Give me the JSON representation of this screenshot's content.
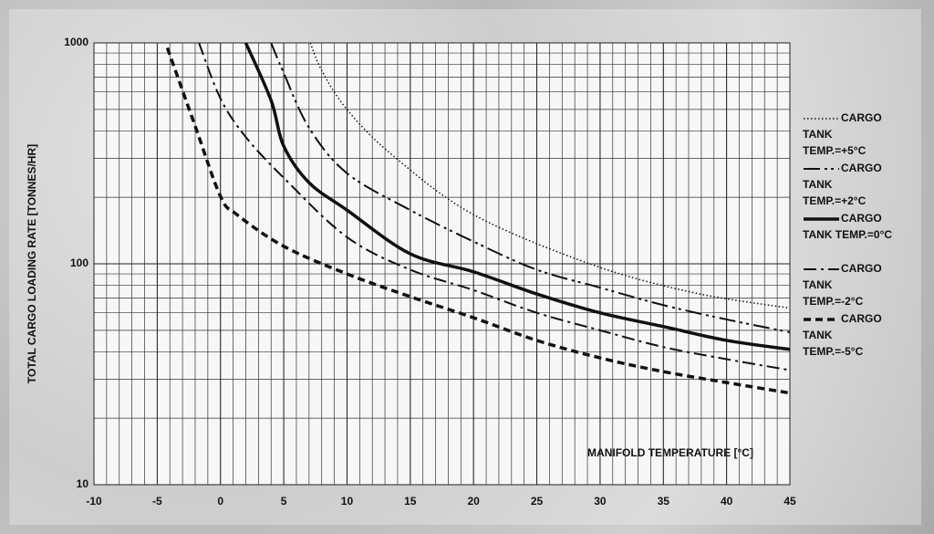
{
  "chart_data": {
    "type": "line",
    "x_label": "MANIFOLD TEMPERATURE [°C]",
    "y_label": "TOTAL CARGO LOADING RATE [TONNES/HR]",
    "xlim": [
      -10,
      45
    ],
    "xticks": [
      -10,
      -5,
      0,
      5,
      10,
      15,
      20,
      25,
      30,
      35,
      40,
      45
    ],
    "ylim": [
      10,
      1000
    ],
    "yticks": [
      10,
      100,
      1000
    ],
    "y_scale": "log",
    "grid": true,
    "minor_grid": true,
    "legend": "right",
    "series": [
      {
        "name": "CARGO TANK TEMP.=+5°C",
        "color": "#111111",
        "linestyle": "dotted",
        "width": 1.5,
        "x": [
          7.1,
          8,
          10,
          13.6,
          20,
          29.4,
          37.4,
          45
        ],
        "values": [
          1000,
          750,
          499,
          310,
          167,
          99,
          74,
          63
        ]
      },
      {
        "name": "CARGO TANK TEMP.=+2°C",
        "color": "#111111",
        "linestyle": "dashdotdot",
        "width": 2,
        "x": [
          4,
          5,
          7,
          10,
          15,
          20,
          25,
          30,
          35,
          40,
          45
        ],
        "values": [
          1000,
          730,
          413,
          257,
          175,
          126,
          94,
          78,
          65,
          56,
          49
        ]
      },
      {
        "name": "CARGO TANK TEMP.=0°C",
        "color": "#111111",
        "linestyle": "solid",
        "width": 3.5,
        "x": [
          2,
          4,
          5,
          7,
          10,
          15,
          20,
          25,
          30,
          35,
          40,
          45
        ],
        "values": [
          1000,
          549,
          341,
          233,
          175,
          111,
          92,
          73,
          60,
          52,
          45,
          41
        ]
      },
      {
        "name": "CARGO TANK TEMP.=-2°C",
        "color": "#111111",
        "linestyle": "dashdot",
        "width": 2,
        "x": [
          -1.7,
          0,
          2,
          5,
          10,
          15,
          20,
          25,
          30,
          35,
          40,
          45
        ],
        "values": [
          1000,
          560,
          375,
          245,
          132,
          94,
          76,
          60,
          50,
          42,
          37,
          33
        ]
      },
      {
        "name": "CARGO TANK TEMP.=-5°C",
        "color": "#111111",
        "linestyle": "dashed",
        "width": 3.5,
        "x": [
          -4.2,
          -2,
          0,
          1.3,
          5,
          10,
          15,
          20,
          25,
          30,
          35,
          40,
          45
        ],
        "values": [
          950,
          420,
          202,
          167,
          120,
          90,
          71,
          57,
          45,
          37.5,
          32.5,
          29,
          26
        ]
      }
    ]
  }
}
